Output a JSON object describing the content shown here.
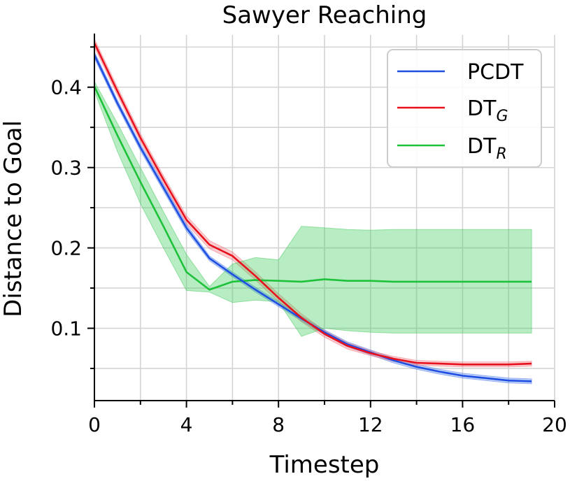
{
  "chart_data": {
    "type": "line",
    "title": "Sawyer Reaching",
    "xlabel": "Timestep",
    "ylabel": "Distance to Goal",
    "xlim": [
      0,
      20
    ],
    "ylim": [
      0.01,
      0.465
    ],
    "xticks": [
      0,
      4,
      8,
      12,
      16,
      20
    ],
    "xtick_labels": [
      "0",
      "4",
      "8",
      "12",
      "16",
      "20"
    ],
    "yticks": [
      0.1,
      0.2,
      0.3,
      0.4
    ],
    "ytick_labels": [
      "0.1",
      "0.2",
      "0.3",
      "0.4"
    ],
    "grid": true,
    "legend_position": "top-right",
    "x": [
      0,
      1,
      2,
      3,
      4,
      5,
      6,
      7,
      8,
      9,
      10,
      11,
      12,
      13,
      14,
      15,
      16,
      17,
      18,
      19
    ],
    "series": [
      {
        "name": "PCDT",
        "legend_main": "PCDT",
        "legend_sub": "",
        "color": "#1f4fe0",
        "band_color": "#4a7af0",
        "values": [
          0.44,
          0.38,
          0.325,
          0.275,
          0.225,
          0.187,
          0.167,
          0.148,
          0.13,
          0.112,
          0.095,
          0.08,
          0.07,
          0.06,
          0.052,
          0.046,
          0.041,
          0.038,
          0.035,
          0.034
        ],
        "lower": [
          0.436,
          0.376,
          0.321,
          0.271,
          0.221,
          0.184,
          0.164,
          0.145,
          0.127,
          0.109,
          0.092,
          0.077,
          0.067,
          0.057,
          0.049,
          0.043,
          0.038,
          0.035,
          0.032,
          0.031
        ],
        "upper": [
          0.444,
          0.384,
          0.329,
          0.279,
          0.229,
          0.19,
          0.17,
          0.151,
          0.133,
          0.115,
          0.098,
          0.083,
          0.073,
          0.063,
          0.055,
          0.049,
          0.044,
          0.041,
          0.038,
          0.037
        ]
      },
      {
        "name": "DT_G",
        "legend_main": "DT",
        "legend_sub": "G",
        "color": "#e8101c",
        "band_color": "#f07078",
        "values": [
          0.455,
          0.395,
          0.337,
          0.285,
          0.235,
          0.204,
          0.19,
          0.165,
          0.138,
          0.113,
          0.093,
          0.078,
          0.069,
          0.062,
          0.057,
          0.056,
          0.055,
          0.055,
          0.055,
          0.056
        ],
        "lower": [
          0.45,
          0.39,
          0.332,
          0.28,
          0.23,
          0.199,
          0.185,
          0.16,
          0.133,
          0.108,
          0.089,
          0.074,
          0.066,
          0.059,
          0.054,
          0.053,
          0.052,
          0.052,
          0.052,
          0.053
        ],
        "upper": [
          0.46,
          0.4,
          0.342,
          0.29,
          0.24,
          0.209,
          0.195,
          0.17,
          0.143,
          0.118,
          0.097,
          0.082,
          0.072,
          0.065,
          0.06,
          0.059,
          0.058,
          0.058,
          0.058,
          0.059
        ]
      },
      {
        "name": "DT_R",
        "legend_main": "DT",
        "legend_sub": "R",
        "color": "#1ec23a",
        "band_color": "#44cc5e",
        "values": [
          0.401,
          0.34,
          0.282,
          0.227,
          0.17,
          0.148,
          0.158,
          0.16,
          0.159,
          0.158,
          0.161,
          0.159,
          0.159,
          0.158,
          0.158,
          0.158,
          0.158,
          0.158,
          0.158,
          0.158
        ],
        "lower": [
          0.395,
          0.32,
          0.255,
          0.2,
          0.147,
          0.145,
          0.132,
          0.135,
          0.133,
          0.09,
          0.1,
          0.097,
          0.095,
          0.094,
          0.094,
          0.094,
          0.094,
          0.094,
          0.094,
          0.094
        ],
        "upper": [
          0.407,
          0.355,
          0.3,
          0.245,
          0.192,
          0.152,
          0.18,
          0.188,
          0.185,
          0.227,
          0.225,
          0.223,
          0.222,
          0.223,
          0.223,
          0.223,
          0.223,
          0.223,
          0.223,
          0.223
        ]
      }
    ]
  }
}
